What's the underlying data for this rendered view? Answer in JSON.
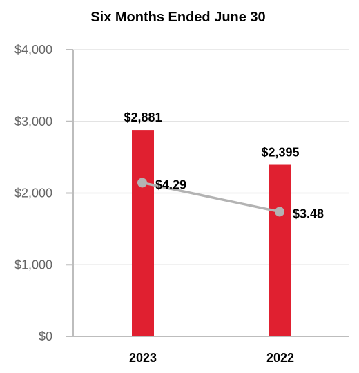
{
  "chart_data": {
    "type": "bar",
    "title": "Six Months Ended June 30",
    "categories": [
      "2023",
      "2022"
    ],
    "ylim": [
      0,
      4000
    ],
    "yticks": [
      0,
      1000,
      2000,
      3000,
      4000
    ],
    "ytick_labels": [
      "$0",
      "$1,000",
      "$2,000",
      "$3,000",
      "$4,000"
    ],
    "grid": true,
    "series": [
      {
        "type": "bar",
        "values": [
          2881,
          2395
        ],
        "labels": [
          "$2,881",
          "$2,395"
        ],
        "color": "#e02030"
      },
      {
        "type": "line",
        "values": [
          4.29,
          3.48
        ],
        "labels": [
          "$4.29",
          "$3.48"
        ],
        "ylim": [
          0,
          8
        ],
        "color": "#b3b3b3"
      }
    ]
  }
}
